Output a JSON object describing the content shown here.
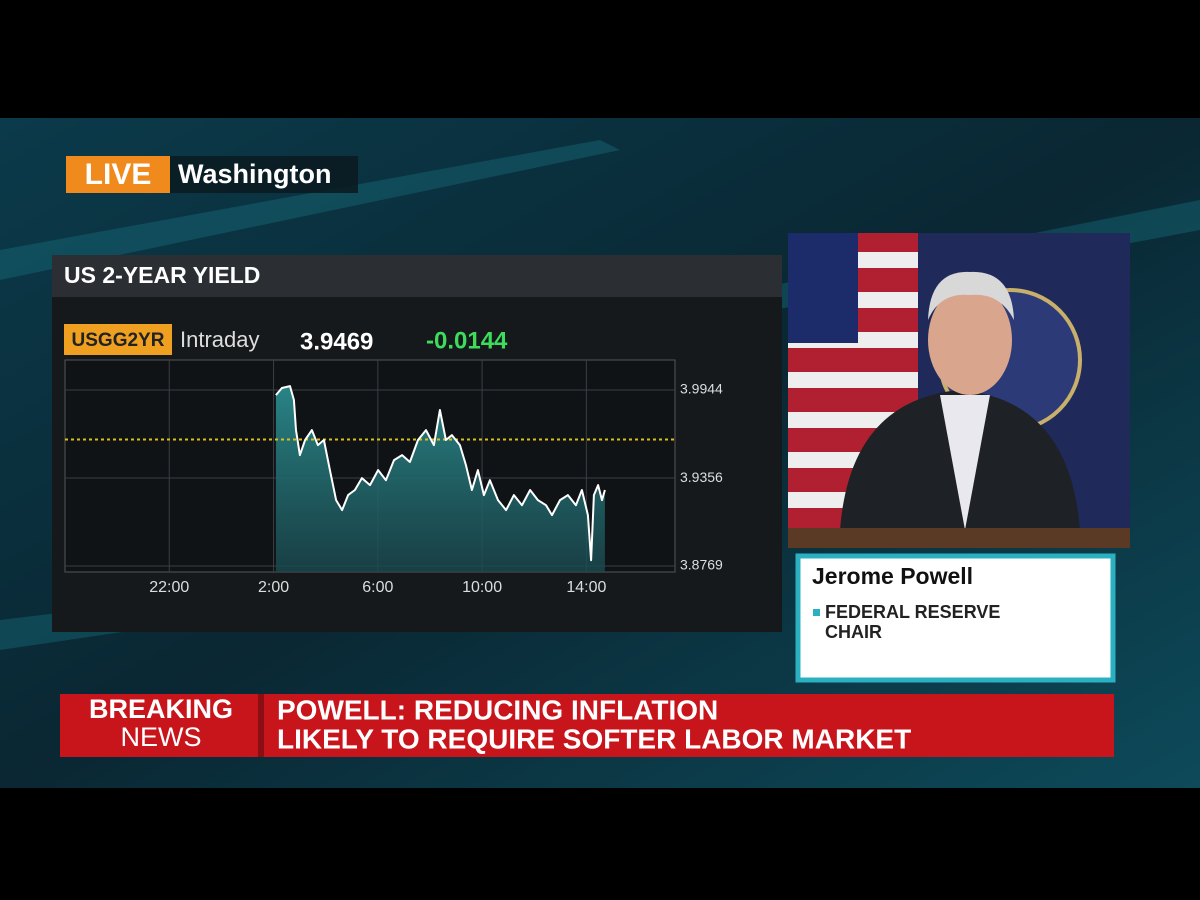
{
  "live_label": "LIVE",
  "location": "Washington",
  "speaker": {
    "name": "Jerome Powell",
    "title": [
      "FEDERAL RESERVE",
      "CHAIR"
    ]
  },
  "breaking": [
    "BREAKING",
    "NEWS"
  ],
  "headline": [
    "POWELL: REDUCING INFLATION",
    "LIKELY TO REQUIRE SOFTER LABOR MARKET"
  ],
  "chart_data": {
    "type": "line",
    "title": "US 2-YEAR YIELD",
    "ticker": "USGG2YR",
    "period": "Intraday",
    "last": 3.9469,
    "change": -0.0144,
    "x": [
      8.09,
      8.32,
      8.63,
      8.78,
      8.86,
      9.01,
      9.21,
      9.47,
      9.7,
      9.93,
      10.16,
      10.4,
      10.63,
      10.86,
      11.12,
      11.39,
      11.7,
      12.01,
      12.31,
      12.62,
      12.93,
      13.23,
      13.54,
      13.85,
      14.15,
      14.38,
      14.61,
      14.84,
      15.15,
      15.38,
      15.61,
      15.84,
      16.07,
      16.3,
      16.61,
      16.92,
      17.22,
      17.53,
      17.84,
      18.14,
      18.45,
      18.68,
      18.99,
      19.29,
      19.6,
      19.83,
      20.06,
      20.18,
      20.29,
      20.45,
      20.6,
      20.71
    ],
    "values": [
      3.991,
      3.9957,
      3.997,
      3.9877,
      3.9676,
      3.9509,
      3.961,
      3.9676,
      3.9576,
      3.961,
      3.9409,
      3.9209,
      3.9142,
      3.9242,
      3.9276,
      3.9356,
      3.9309,
      3.9409,
      3.9342,
      3.9476,
      3.9509,
      3.9463,
      3.961,
      3.9676,
      3.9576,
      3.981,
      3.961,
      3.9643,
      3.9576,
      3.9443,
      3.9276,
      3.9409,
      3.9242,
      3.9342,
      3.9209,
      3.9142,
      3.9242,
      3.9175,
      3.9276,
      3.9209,
      3.9175,
      3.9109,
      3.9209,
      3.9242,
      3.9175,
      3.9276,
      3.9109,
      3.8808,
      3.9242,
      3.9309,
      3.9209,
      3.9276
    ],
    "color": "#ffffff",
    "fill_color": "#2a8a8c",
    "reference": 3.9613,
    "reference_color": "#d8c21a",
    "xlim": [
      0,
      23.4
    ],
    "xticks": [
      {
        "value": 4,
        "label": "22:00"
      },
      {
        "value": 8,
        "label": "2:00"
      },
      {
        "value": 12,
        "label": "6:00"
      },
      {
        "value": 16,
        "label": "10:00"
      },
      {
        "value": 20,
        "label": "14:00"
      }
    ],
    "ylim": [
      3.8729,
      4.0144
    ],
    "yticks": [
      3.8769,
      3.9356,
      3.9944
    ],
    "grid": true
  }
}
